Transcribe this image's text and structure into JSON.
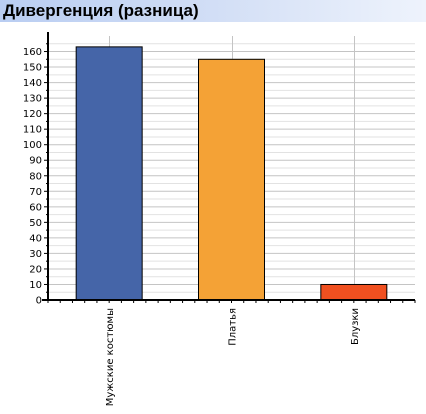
{
  "header": {
    "title": "Дивергенция (разница)",
    "background_color": "#c6d6f4"
  },
  "chart_data": {
    "type": "bar",
    "title": "Дивергенция (разница)",
    "xlabel": "",
    "ylabel": "",
    "categories": [
      "Мужские костюмы",
      "Платья",
      "Блузки"
    ],
    "values": [
      163,
      155,
      10
    ],
    "colors": [
      "#4565a8",
      "#f4a236",
      "#f05020"
    ],
    "ylim": [
      0,
      170
    ],
    "yticks": [
      0,
      10,
      20,
      30,
      40,
      50,
      60,
      70,
      80,
      90,
      100,
      110,
      120,
      130,
      140,
      150,
      160
    ],
    "grid": true,
    "legend": "none"
  }
}
